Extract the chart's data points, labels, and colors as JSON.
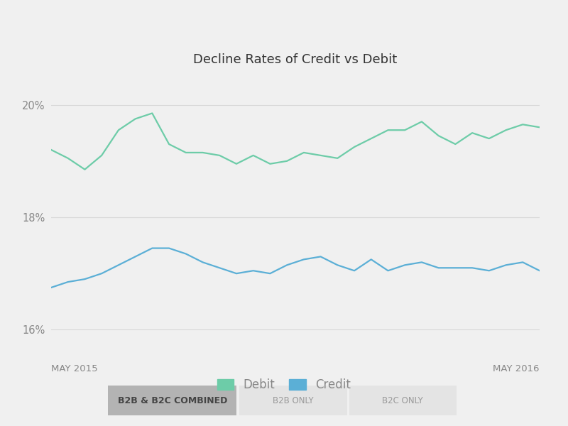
{
  "title": "Decline Rates of Credit vs Debit",
  "background_color": "#f0f0f0",
  "plot_bg_color": "#f0f0f0",
  "ylim": [
    15.5,
    20.5
  ],
  "yticks": [
    16,
    18,
    20
  ],
  "ytick_labels": [
    "16%",
    "18%",
    "20%"
  ],
  "xlabel_left": "MAY 2015",
  "xlabel_right": "MAY 2016",
  "debit_color": "#6dcca8",
  "credit_color": "#5bafd6",
  "debit_values": [
    19.2,
    19.05,
    18.85,
    19.1,
    19.55,
    19.75,
    19.85,
    19.3,
    19.15,
    19.15,
    19.1,
    18.95,
    19.1,
    18.95,
    19.0,
    19.15,
    19.1,
    19.05,
    19.25,
    19.4,
    19.55,
    19.55,
    19.7,
    19.45,
    19.3,
    19.5,
    19.4,
    19.55,
    19.65,
    19.6
  ],
  "credit_values": [
    16.75,
    16.85,
    16.9,
    17.0,
    17.15,
    17.3,
    17.45,
    17.45,
    17.35,
    17.2,
    17.1,
    17.0,
    17.05,
    17.0,
    17.15,
    17.25,
    17.3,
    17.15,
    17.05,
    17.25,
    17.05,
    17.15,
    17.2,
    17.1,
    17.1,
    17.1,
    17.05,
    17.15,
    17.2,
    17.05
  ],
  "legend_debit_label": "Debit",
  "legend_credit_label": "Credit",
  "grid_color": "#d8d8d8",
  "axis_label_color": "#888888",
  "title_color": "#333333",
  "legend_fontsize": 12,
  "title_fontsize": 13,
  "button_labels": [
    "B2B & B2C COMBINED",
    "B2B ONLY",
    "B2C ONLY"
  ],
  "button_active_color": "#b3b3b3",
  "button_inactive_color": "#e4e4e4",
  "button_active_text": "#444444",
  "button_inactive_text": "#999999",
  "grid_linewidth": 0.8
}
